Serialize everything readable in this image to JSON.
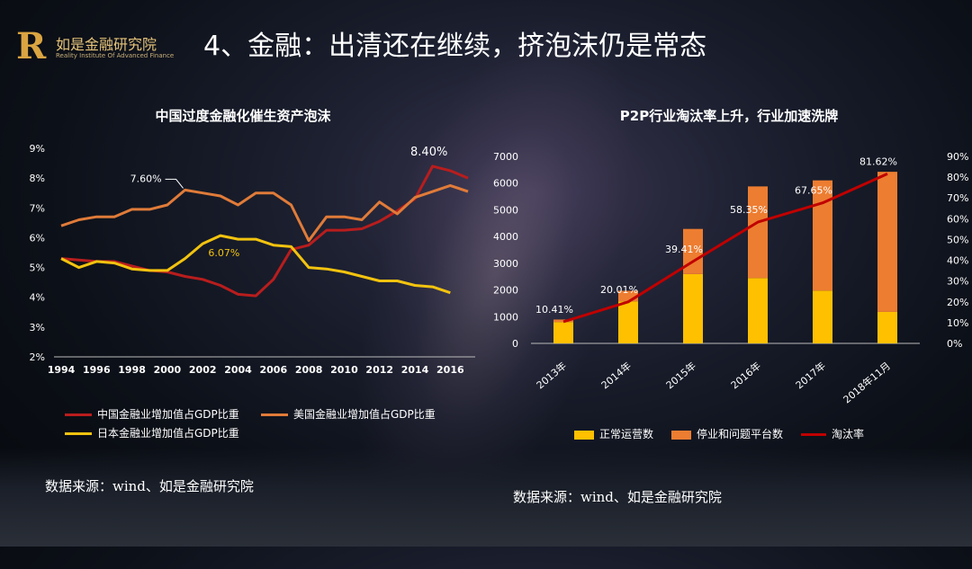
{
  "header": {
    "logo_cn": "如是金融研究院",
    "logo_en": "Reality Institute Of Advanced Finance",
    "logo_mark": "R",
    "title": "4、金融：出清还在继续，挤泡沫仍是常态"
  },
  "colors": {
    "china": "#b81d1d",
    "usa": "#e07b39",
    "japan": "#f2c30f",
    "normal": "#ffc000",
    "stopped": "#ed7d31",
    "rate": "#c00000"
  },
  "chart_data": [
    {
      "type": "line",
      "title": "中国过度金融化催生资产泡沫",
      "x": [
        1994,
        1995,
        1996,
        1997,
        1998,
        1999,
        2000,
        2001,
        2002,
        2003,
        2004,
        2005,
        2006,
        2007,
        2008,
        2009,
        2010,
        2011,
        2012,
        2013,
        2014,
        2015,
        2016,
        2017
      ],
      "xticks": [
        1994,
        1996,
        1998,
        2000,
        2002,
        2004,
        2006,
        2008,
        2010,
        2012,
        2014,
        2016
      ],
      "yticks": [
        "2%",
        "3%",
        "4%",
        "5%",
        "6%",
        "7%",
        "8%",
        "9%"
      ],
      "ylim": [
        2,
        9
      ],
      "series": [
        {
          "name": "中国金融业增加值占GDP比重",
          "values": [
            5.3,
            5.25,
            5.2,
            5.2,
            5.05,
            4.9,
            4.85,
            4.7,
            4.6,
            4.4,
            4.1,
            4.05,
            4.6,
            5.6,
            5.75,
            6.25,
            6.25,
            6.3,
            6.55,
            6.9,
            7.3,
            8.4,
            8.25,
            8.0
          ]
        },
        {
          "name": "美国金融业增加值占GDP比重",
          "values": [
            6.4,
            6.6,
            6.7,
            6.7,
            6.95,
            6.95,
            7.1,
            7.6,
            7.5,
            7.4,
            7.1,
            7.5,
            7.5,
            7.1,
            5.9,
            6.7,
            6.7,
            6.6,
            7.2,
            6.8,
            7.35,
            7.55,
            7.75,
            7.55
          ]
        },
        {
          "name": "日本金融业增加值占GDP比重",
          "values": [
            5.3,
            5.0,
            5.2,
            5.15,
            4.95,
            4.9,
            4.9,
            5.3,
            5.8,
            6.07,
            5.95,
            5.95,
            5.75,
            5.7,
            5.0,
            4.95,
            4.85,
            4.7,
            4.55,
            4.55,
            4.4,
            4.35,
            4.15,
            null
          ]
        }
      ],
      "annotations": [
        {
          "label": "8.40%",
          "series": 0,
          "index": 21
        },
        {
          "label": "7.60%",
          "series": 1,
          "index": 7
        },
        {
          "label": "6.07%",
          "series": 2,
          "index": 9
        }
      ]
    },
    {
      "type": "bar+line",
      "title": "P2P行业淘汰率上升，行业加速洗牌",
      "categories": [
        "2013年",
        "2014年",
        "2015年",
        "2016年",
        "2017年",
        "2018年11月"
      ],
      "yticks_left": [
        "0",
        "1000",
        "2000",
        "3000",
        "4000",
        "5000",
        "6000",
        "7000"
      ],
      "ylim_left": [
        0,
        7000
      ],
      "yticks_right": [
        "0%",
        "10%",
        "20%",
        "30%",
        "40%",
        "50%",
        "60%",
        "70%",
        "80%",
        "90%"
      ],
      "ylim_right": [
        0,
        90
      ],
      "series": [
        {
          "name": "正常运营数",
          "values": [
            800,
            1575,
            2595,
            2448,
            1975,
            1181
          ]
        },
        {
          "name": "停业和问题平台数",
          "values": [
            93,
            395,
            1690,
            3429,
            4128,
            5243
          ]
        },
        {
          "name": "淘汰率",
          "values": [
            10.41,
            20.01,
            39.41,
            58.35,
            67.65,
            81.62
          ]
        }
      ],
      "rate_labels": [
        "10.41%",
        "20.01%",
        "39.41%",
        "58.35%",
        "67.65%",
        "81.62%"
      ]
    }
  ],
  "sources": {
    "left": "数据来源：wind、如是金融研究院",
    "right": "数据来源：wind、如是金融研究院"
  }
}
